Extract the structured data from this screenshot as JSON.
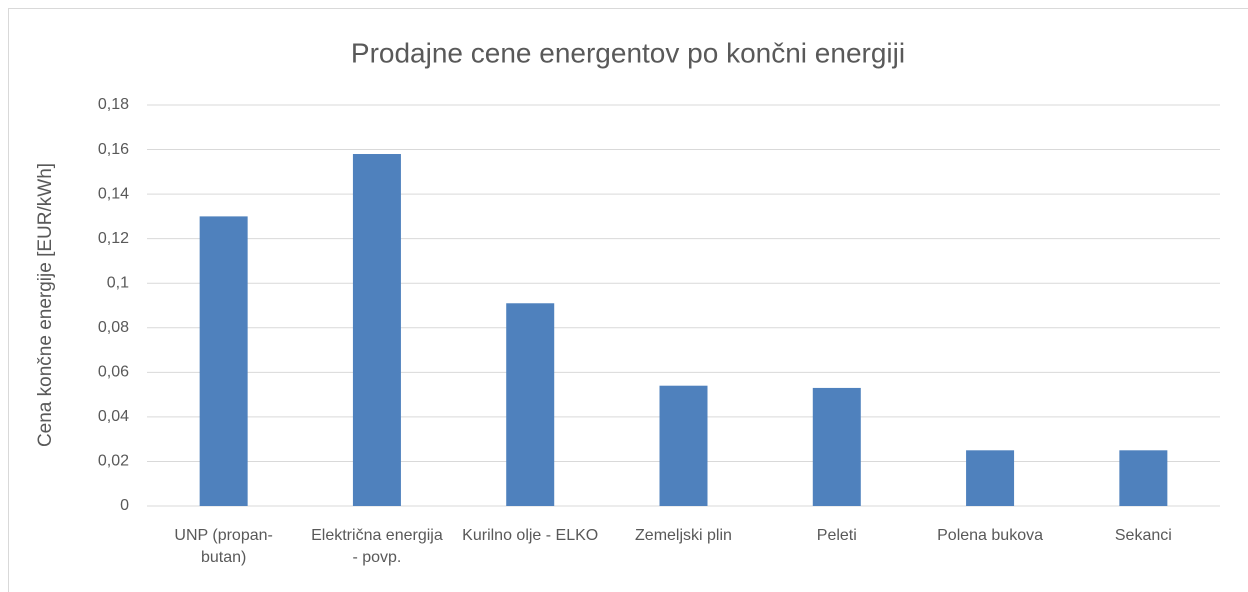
{
  "chart_data": {
    "type": "bar",
    "title": "Prodajne cene energentov po končni energiji",
    "y_label": "Cena končne energije [EUR/kWh]",
    "categories": [
      "UNP (propan-butan)",
      "Električna energija - povp.",
      "Kurilno olje - ELKO",
      "Zemeljski plin",
      "Peleti",
      "Polena bukova",
      "Sekanci"
    ],
    "values": [
      0.13,
      0.158,
      0.091,
      0.054,
      0.053,
      0.025,
      0.025
    ],
    "color": "#4f81bd",
    "ylim": [
      0,
      0.18
    ],
    "yticks": [
      0,
      {
        "value": 0.02,
        "label": "0,02"
      },
      {
        "value": 0.04,
        "label": "0,04"
      },
      {
        "value": 0.06,
        "label": "0,06"
      },
      {
        "value": 0.08,
        "label": "0,08"
      },
      {
        "value": 0.1,
        "label": "0,1"
      },
      {
        "value": 0.12,
        "label": "0,12"
      },
      {
        "value": 0.14,
        "label": "0,14"
      },
      {
        "value": 0.16,
        "label": "0,16"
      },
      {
        "value": 0.18,
        "label": "0,18"
      }
    ],
    "grid": true
  }
}
